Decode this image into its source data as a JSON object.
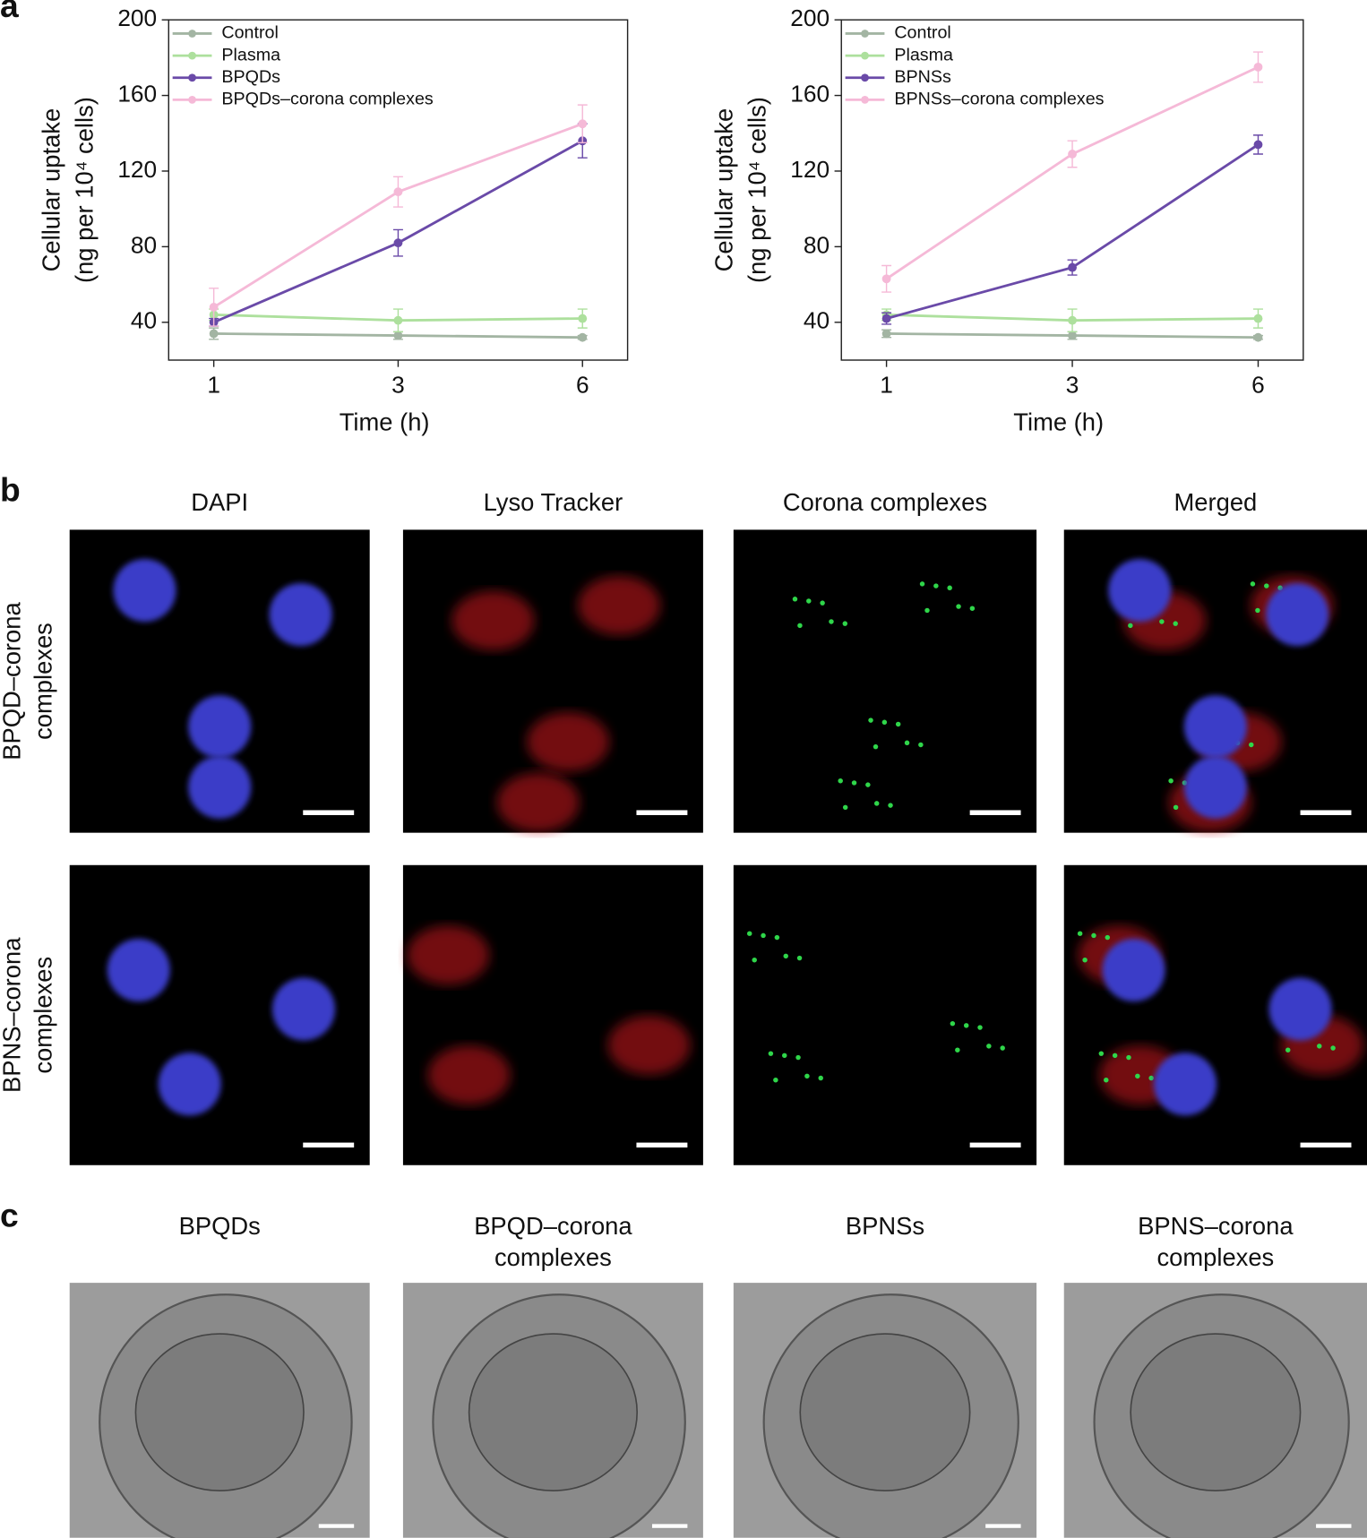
{
  "panel_labels": [
    "a",
    "b",
    "c"
  ],
  "chart_data": [
    {
      "type": "line",
      "categories": [
        "1",
        "3",
        "6"
      ],
      "xlabel": "Time (h)",
      "ylabel": [
        "Cellular uptake",
        "(ng per 10⁴ cells)"
      ],
      "ylim": [
        20,
        200
      ],
      "yticks": [
        40,
        80,
        120,
        160,
        200
      ],
      "series": [
        {
          "name": "Control",
          "color": "#a3b5a3",
          "values": [
            34,
            33,
            32
          ],
          "errors": [
            3,
            2,
            1
          ]
        },
        {
          "name": "Plasma",
          "color": "#ade09d",
          "values": [
            44,
            41,
            42
          ],
          "errors": [
            3,
            6,
            5
          ]
        },
        {
          "name": "BPQDs",
          "color": "#6a4aa8",
          "values": [
            40,
            82,
            136
          ],
          "errors": [
            2,
            7,
            9
          ]
        },
        {
          "name": "BPQDs–corona complexes",
          "color": "#f5b9d7",
          "values": [
            48,
            109,
            145
          ],
          "errors": [
            10,
            8,
            10
          ]
        }
      ]
    },
    {
      "type": "line",
      "categories": [
        "1",
        "3",
        "6"
      ],
      "xlabel": "Time (h)",
      "ylabel": [
        "Cellular uptake",
        "(ng per 10⁴ cells)"
      ],
      "ylim": [
        20,
        200
      ],
      "yticks": [
        40,
        80,
        120,
        160,
        200
      ],
      "series": [
        {
          "name": "Control",
          "color": "#a3b5a3",
          "values": [
            34,
            33,
            32
          ],
          "errors": [
            2,
            2,
            1
          ]
        },
        {
          "name": "Plasma",
          "color": "#ade09d",
          "values": [
            44,
            41,
            42
          ],
          "errors": [
            3,
            6,
            5
          ]
        },
        {
          "name": "BPNSs",
          "color": "#6a4aa8",
          "values": [
            42,
            69,
            134
          ],
          "errors": [
            3,
            4,
            5
          ]
        },
        {
          "name": "BPNSs–corona complexes",
          "color": "#f5b9d7",
          "values": [
            63,
            129,
            175
          ],
          "errors": [
            7,
            7,
            8
          ]
        }
      ]
    }
  ],
  "fluorescence": {
    "columns": [
      "DAPI",
      "Lyso Tracker",
      "Corona complexes",
      "Merged"
    ],
    "rows": [
      [
        "BPQD–corona",
        "complexes"
      ],
      [
        "BPNS–corona",
        "complexes"
      ]
    ]
  },
  "tem": {
    "columns": [
      [
        "BPQDs"
      ],
      [
        "BPQD–corona",
        "complexes"
      ],
      [
        "BPNSs"
      ],
      [
        "BPNS–corona",
        "complexes"
      ]
    ]
  }
}
